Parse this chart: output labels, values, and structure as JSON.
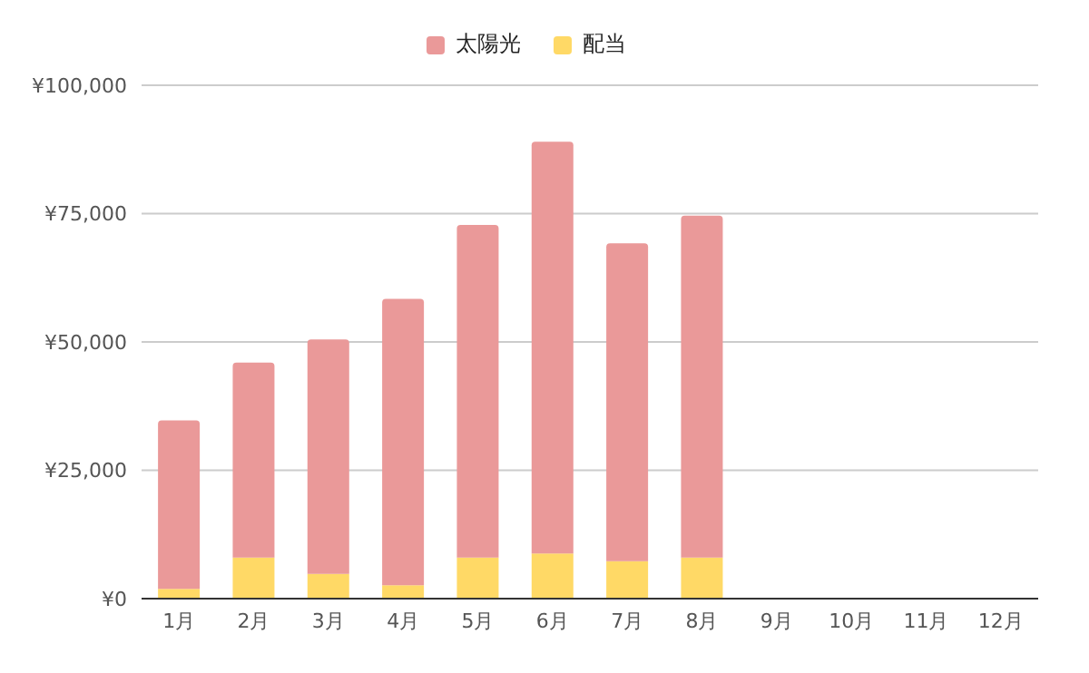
{
  "chart_data": {
    "type": "bar",
    "stacked": true,
    "categories": [
      "1月",
      "2月",
      "3月",
      "4月",
      "5月",
      "6月",
      "7月",
      "8月",
      "9月",
      "10月",
      "11月",
      "12月"
    ],
    "series": [
      {
        "name": "配当",
        "color": "#ffd966",
        "values": [
          1900,
          8000,
          4800,
          2600,
          8000,
          8800,
          7300,
          8000,
          null,
          null,
          null,
          null
        ]
      },
      {
        "name": "太陽光",
        "color": "#ea9999",
        "values": [
          32800,
          38000,
          45700,
          55800,
          64800,
          80200,
          61900,
          66600,
          null,
          null,
          null,
          null
        ]
      }
    ],
    "ylim": [
      0,
      100000
    ],
    "yticks": [
      {
        "value": 0,
        "label": "¥0"
      },
      {
        "value": 25000,
        "label": "¥25,000"
      },
      {
        "value": 50000,
        "label": "¥50,000"
      },
      {
        "value": 75000,
        "label": "¥75,000"
      },
      {
        "value": 100000,
        "label": "¥100,000"
      }
    ],
    "grid": "y",
    "legend": "top"
  }
}
